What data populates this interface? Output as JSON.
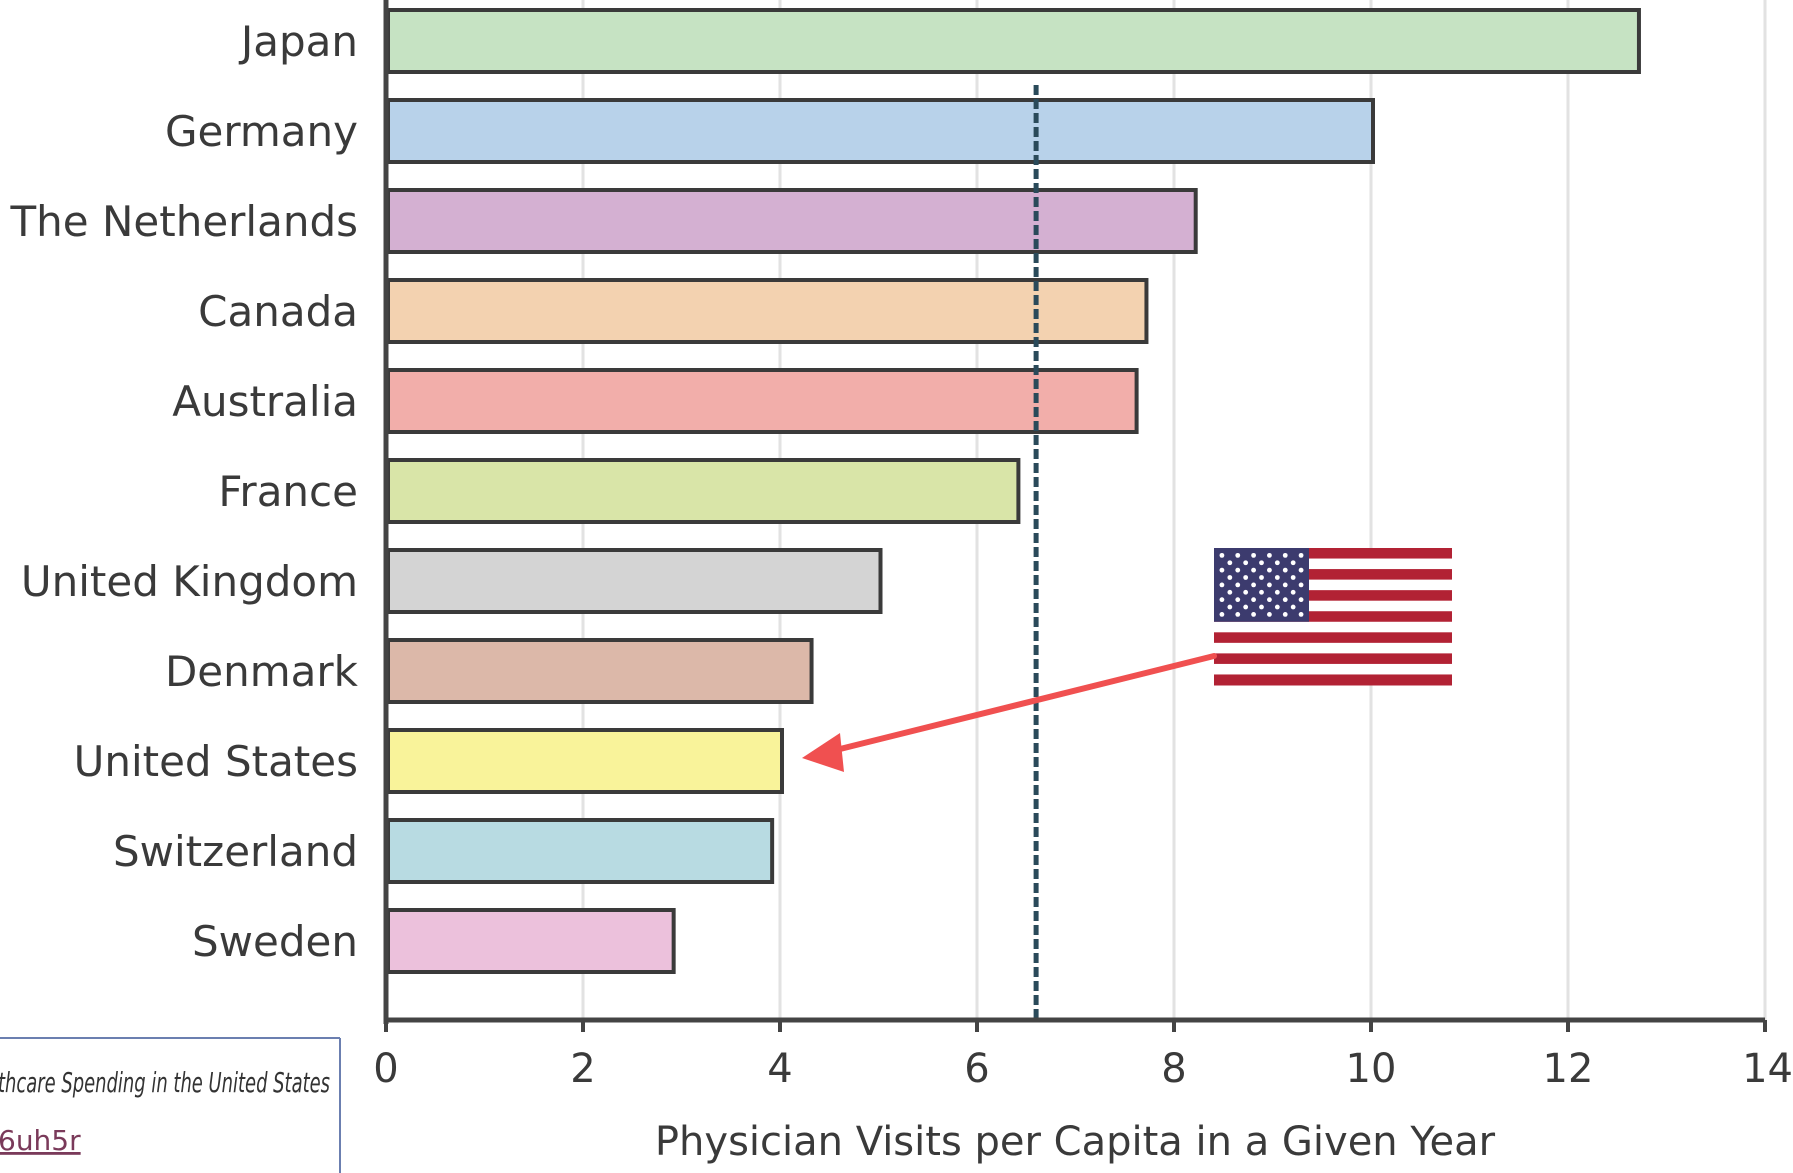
{
  "chart_data": {
    "type": "bar",
    "orientation": "horizontal",
    "categories": [
      "Japan",
      "Germany",
      "The Netherlands",
      "Canada",
      "Australia",
      "France",
      "United Kingdom",
      "Denmark",
      "United States",
      "Switzerland",
      "Sweden"
    ],
    "values": [
      12.7,
      10.0,
      8.2,
      7.7,
      7.6,
      6.4,
      5.0,
      4.3,
      4.0,
      3.9,
      2.9
    ],
    "colors": [
      "#c6e3c3",
      "#b8d2ea",
      "#d4b0d2",
      "#f3d2b0",
      "#f2aeaa",
      "#d9e5a8",
      "#d4d4d4",
      "#dcb8a9",
      "#f9f39a",
      "#b8dbe2",
      "#ecc1dc"
    ],
    "xlabel": "Physician Visits per Capita in a Given Year",
    "xlim": [
      0,
      14
    ],
    "xticks": [
      "0",
      "2",
      "4",
      "6",
      "8",
      "10",
      "12",
      "14"
    ],
    "reference_line": 6.6,
    "grid": true,
    "annotation": {
      "type": "arrow",
      "target": "United States",
      "color": "#f05050",
      "icon": "us-flag-icon"
    }
  },
  "source_note": {
    "line1": "thcare Spending in the United States",
    "line2": "6uh5r"
  }
}
